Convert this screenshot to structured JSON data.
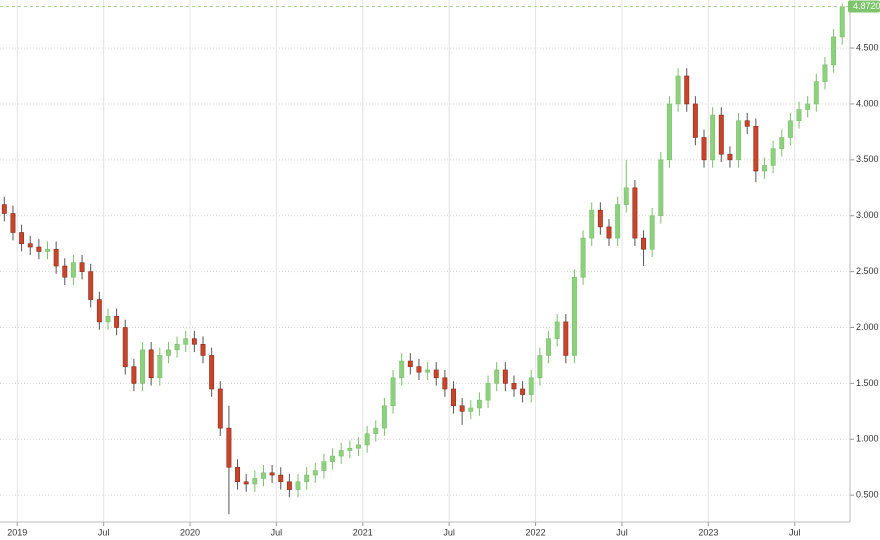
{
  "chart_data": {
    "type": "candlestick",
    "x": [
      2018.925,
      2018.975,
      2019.025,
      2019.075,
      2019.125,
      2019.175,
      2019.225,
      2019.275,
      2019.325,
      2019.375,
      2019.425,
      2019.475,
      2019.525,
      2019.575,
      2019.625,
      2019.675,
      2019.725,
      2019.775,
      2019.825,
      2019.875,
      2019.925,
      2019.975,
      2020.025,
      2020.075,
      2020.125,
      2020.175,
      2020.225,
      2020.275,
      2020.325,
      2020.375,
      2020.425,
      2020.475,
      2020.525,
      2020.575,
      2020.625,
      2020.675,
      2020.725,
      2020.775,
      2020.825,
      2020.875,
      2020.925,
      2020.975,
      2021.025,
      2021.075,
      2021.125,
      2021.175,
      2021.225,
      2021.275,
      2021.325,
      2021.375,
      2021.425,
      2021.475,
      2021.525,
      2021.575,
      2021.625,
      2021.675,
      2021.725,
      2021.775,
      2021.825,
      2021.875,
      2021.925,
      2021.975,
      2022.025,
      2022.075,
      2022.125,
      2022.175,
      2022.225,
      2022.275,
      2022.325,
      2022.375,
      2022.425,
      2022.475,
      2022.525,
      2022.575,
      2022.625,
      2022.675,
      2022.725,
      2022.775,
      2022.825,
      2022.875,
      2022.925,
      2022.975,
      2023.025,
      2023.075,
      2023.125,
      2023.175,
      2023.225,
      2023.275,
      2023.325,
      2023.375,
      2023.425,
      2023.475,
      2023.525,
      2023.575,
      2023.625,
      2023.675,
      2023.725,
      2023.775
    ],
    "open": [
      3.1,
      3.02,
      2.85,
      2.75,
      2.72,
      2.68,
      2.7,
      2.55,
      2.45,
      2.58,
      2.5,
      2.25,
      2.05,
      2.1,
      2.0,
      1.65,
      1.5,
      1.8,
      1.55,
      1.75,
      1.8,
      1.85,
      1.9,
      1.85,
      1.75,
      1.45,
      1.1,
      0.75,
      0.62,
      0.6,
      0.65,
      0.7,
      0.68,
      0.62,
      0.55,
      0.62,
      0.68,
      0.72,
      0.8,
      0.85,
      0.9,
      0.92,
      0.95,
      1.05,
      1.1,
      1.3,
      1.55,
      1.7,
      1.65,
      1.6,
      1.62,
      1.55,
      1.45,
      1.3,
      1.25,
      1.28,
      1.35,
      1.5,
      1.62,
      1.5,
      1.45,
      1.4,
      1.55,
      1.75,
      1.9,
      2.05,
      1.75,
      2.45,
      2.8,
      3.05,
      2.9,
      2.8,
      3.1,
      3.25,
      2.8,
      2.7,
      3.0,
      3.5,
      4.0,
      4.25,
      4.0,
      3.7,
      3.5,
      3.9,
      3.55,
      3.5,
      3.85,
      3.8,
      3.4,
      3.45,
      3.6,
      3.7,
      3.85,
      3.95,
      4.0,
      4.2,
      4.35,
      4.6
    ],
    "high": [
      3.17,
      3.09,
      2.92,
      2.82,
      2.79,
      2.77,
      2.77,
      2.62,
      2.65,
      2.65,
      2.57,
      2.32,
      2.17,
      2.17,
      2.07,
      1.72,
      1.87,
      1.87,
      1.82,
      1.87,
      1.92,
      1.97,
      1.97,
      1.92,
      1.82,
      1.52,
      1.3,
      0.82,
      0.69,
      0.72,
      0.77,
      0.77,
      0.75,
      0.69,
      0.69,
      0.75,
      0.79,
      0.87,
      0.92,
      0.97,
      0.99,
      1.02,
      1.12,
      1.17,
      1.37,
      1.62,
      1.77,
      1.77,
      1.72,
      1.69,
      1.69,
      1.62,
      1.52,
      1.37,
      1.35,
      1.42,
      1.57,
      1.69,
      1.69,
      1.57,
      1.52,
      1.62,
      1.82,
      1.97,
      2.12,
      2.12,
      2.52,
      2.87,
      3.12,
      3.12,
      2.97,
      3.17,
      3.5,
      3.32,
      2.87,
      3.07,
      3.57,
      4.07,
      4.32,
      4.32,
      4.07,
      3.77,
      3.97,
      3.97,
      3.62,
      3.92,
      3.92,
      3.87,
      3.52,
      3.67,
      3.77,
      3.92,
      4.02,
      4.07,
      4.27,
      4.42,
      4.67,
      4.9
    ],
    "low": [
      2.95,
      2.78,
      2.68,
      2.65,
      2.61,
      2.61,
      2.48,
      2.38,
      2.38,
      2.43,
      2.18,
      1.98,
      1.98,
      1.93,
      1.58,
      1.43,
      1.43,
      1.48,
      1.48,
      1.68,
      1.73,
      1.78,
      1.78,
      1.68,
      1.38,
      1.03,
      0.33,
      0.55,
      0.53,
      0.53,
      0.58,
      0.61,
      0.55,
      0.48,
      0.48,
      0.55,
      0.61,
      0.65,
      0.73,
      0.78,
      0.83,
      0.85,
      0.88,
      0.98,
      1.03,
      1.23,
      1.48,
      1.58,
      1.53,
      1.53,
      1.48,
      1.38,
      1.23,
      1.13,
      1.18,
      1.21,
      1.28,
      1.43,
      1.43,
      1.38,
      1.33,
      1.33,
      1.48,
      1.68,
      1.83,
      1.68,
      1.68,
      2.38,
      2.73,
      2.83,
      2.73,
      2.73,
      3.03,
      2.73,
      2.55,
      2.63,
      2.93,
      3.43,
      3.93,
      3.93,
      3.63,
      3.43,
      3.43,
      3.48,
      3.43,
      3.43,
      3.73,
      3.3,
      3.33,
      3.38,
      3.53,
      3.63,
      3.78,
      3.88,
      3.93,
      4.13,
      4.28,
      4.53
    ],
    "close": [
      3.02,
      2.85,
      2.75,
      2.72,
      2.68,
      2.7,
      2.55,
      2.45,
      2.58,
      2.5,
      2.25,
      2.05,
      2.1,
      2.0,
      1.65,
      1.5,
      1.8,
      1.55,
      1.75,
      1.8,
      1.85,
      1.9,
      1.85,
      1.75,
      1.45,
      1.1,
      0.75,
      0.62,
      0.6,
      0.65,
      0.7,
      0.68,
      0.62,
      0.55,
      0.62,
      0.68,
      0.72,
      0.8,
      0.85,
      0.9,
      0.92,
      0.95,
      1.05,
      1.1,
      1.3,
      1.55,
      1.7,
      1.65,
      1.6,
      1.62,
      1.55,
      1.45,
      1.3,
      1.25,
      1.28,
      1.35,
      1.5,
      1.62,
      1.5,
      1.45,
      1.4,
      1.55,
      1.75,
      1.9,
      2.05,
      1.75,
      2.45,
      2.8,
      3.05,
      2.9,
      2.8,
      3.1,
      3.25,
      2.8,
      2.7,
      3.0,
      3.5,
      4.0,
      4.25,
      4.0,
      3.7,
      3.5,
      3.9,
      3.55,
      3.5,
      3.85,
      3.8,
      3.4,
      3.45,
      3.6,
      3.7,
      3.85,
      3.95,
      4.0,
      4.2,
      4.35,
      4.6,
      4.87
    ],
    "up_color": "#8dd07e",
    "down_color": "#c8452c",
    "xlim": [
      2018.9,
      2023.82
    ],
    "ylim": [
      0.26,
      4.93
    ],
    "xticks": [
      2019,
      {
        "value": 2019.5,
        "label": "Jul"
      },
      2020,
      {
        "value": 2020.5,
        "label": "Jul"
      },
      2021,
      {
        "value": 2021.5,
        "label": "Jul"
      },
      2022,
      {
        "value": 2022.5,
        "label": "Jul"
      },
      2023,
      {
        "value": 2023.5,
        "label": "Jul"
      }
    ],
    "yticks": [
      {
        "value": 0.5,
        "label": "0.500"
      },
      {
        "value": 1.0,
        "label": "1.000"
      },
      {
        "value": 1.5,
        "label": "1.500"
      },
      {
        "value": 2.0,
        "label": "2.000"
      },
      {
        "value": 2.5,
        "label": "2.500"
      },
      {
        "value": 3.0,
        "label": "3.000"
      },
      {
        "value": 3.5,
        "label": "3.500"
      },
      {
        "value": 4.0,
        "label": "4.000"
      },
      {
        "value": 4.5,
        "label": "4.500"
      }
    ],
    "last_price": {
      "value": 4.872,
      "label": "4.8720"
    },
    "grid": true
  }
}
